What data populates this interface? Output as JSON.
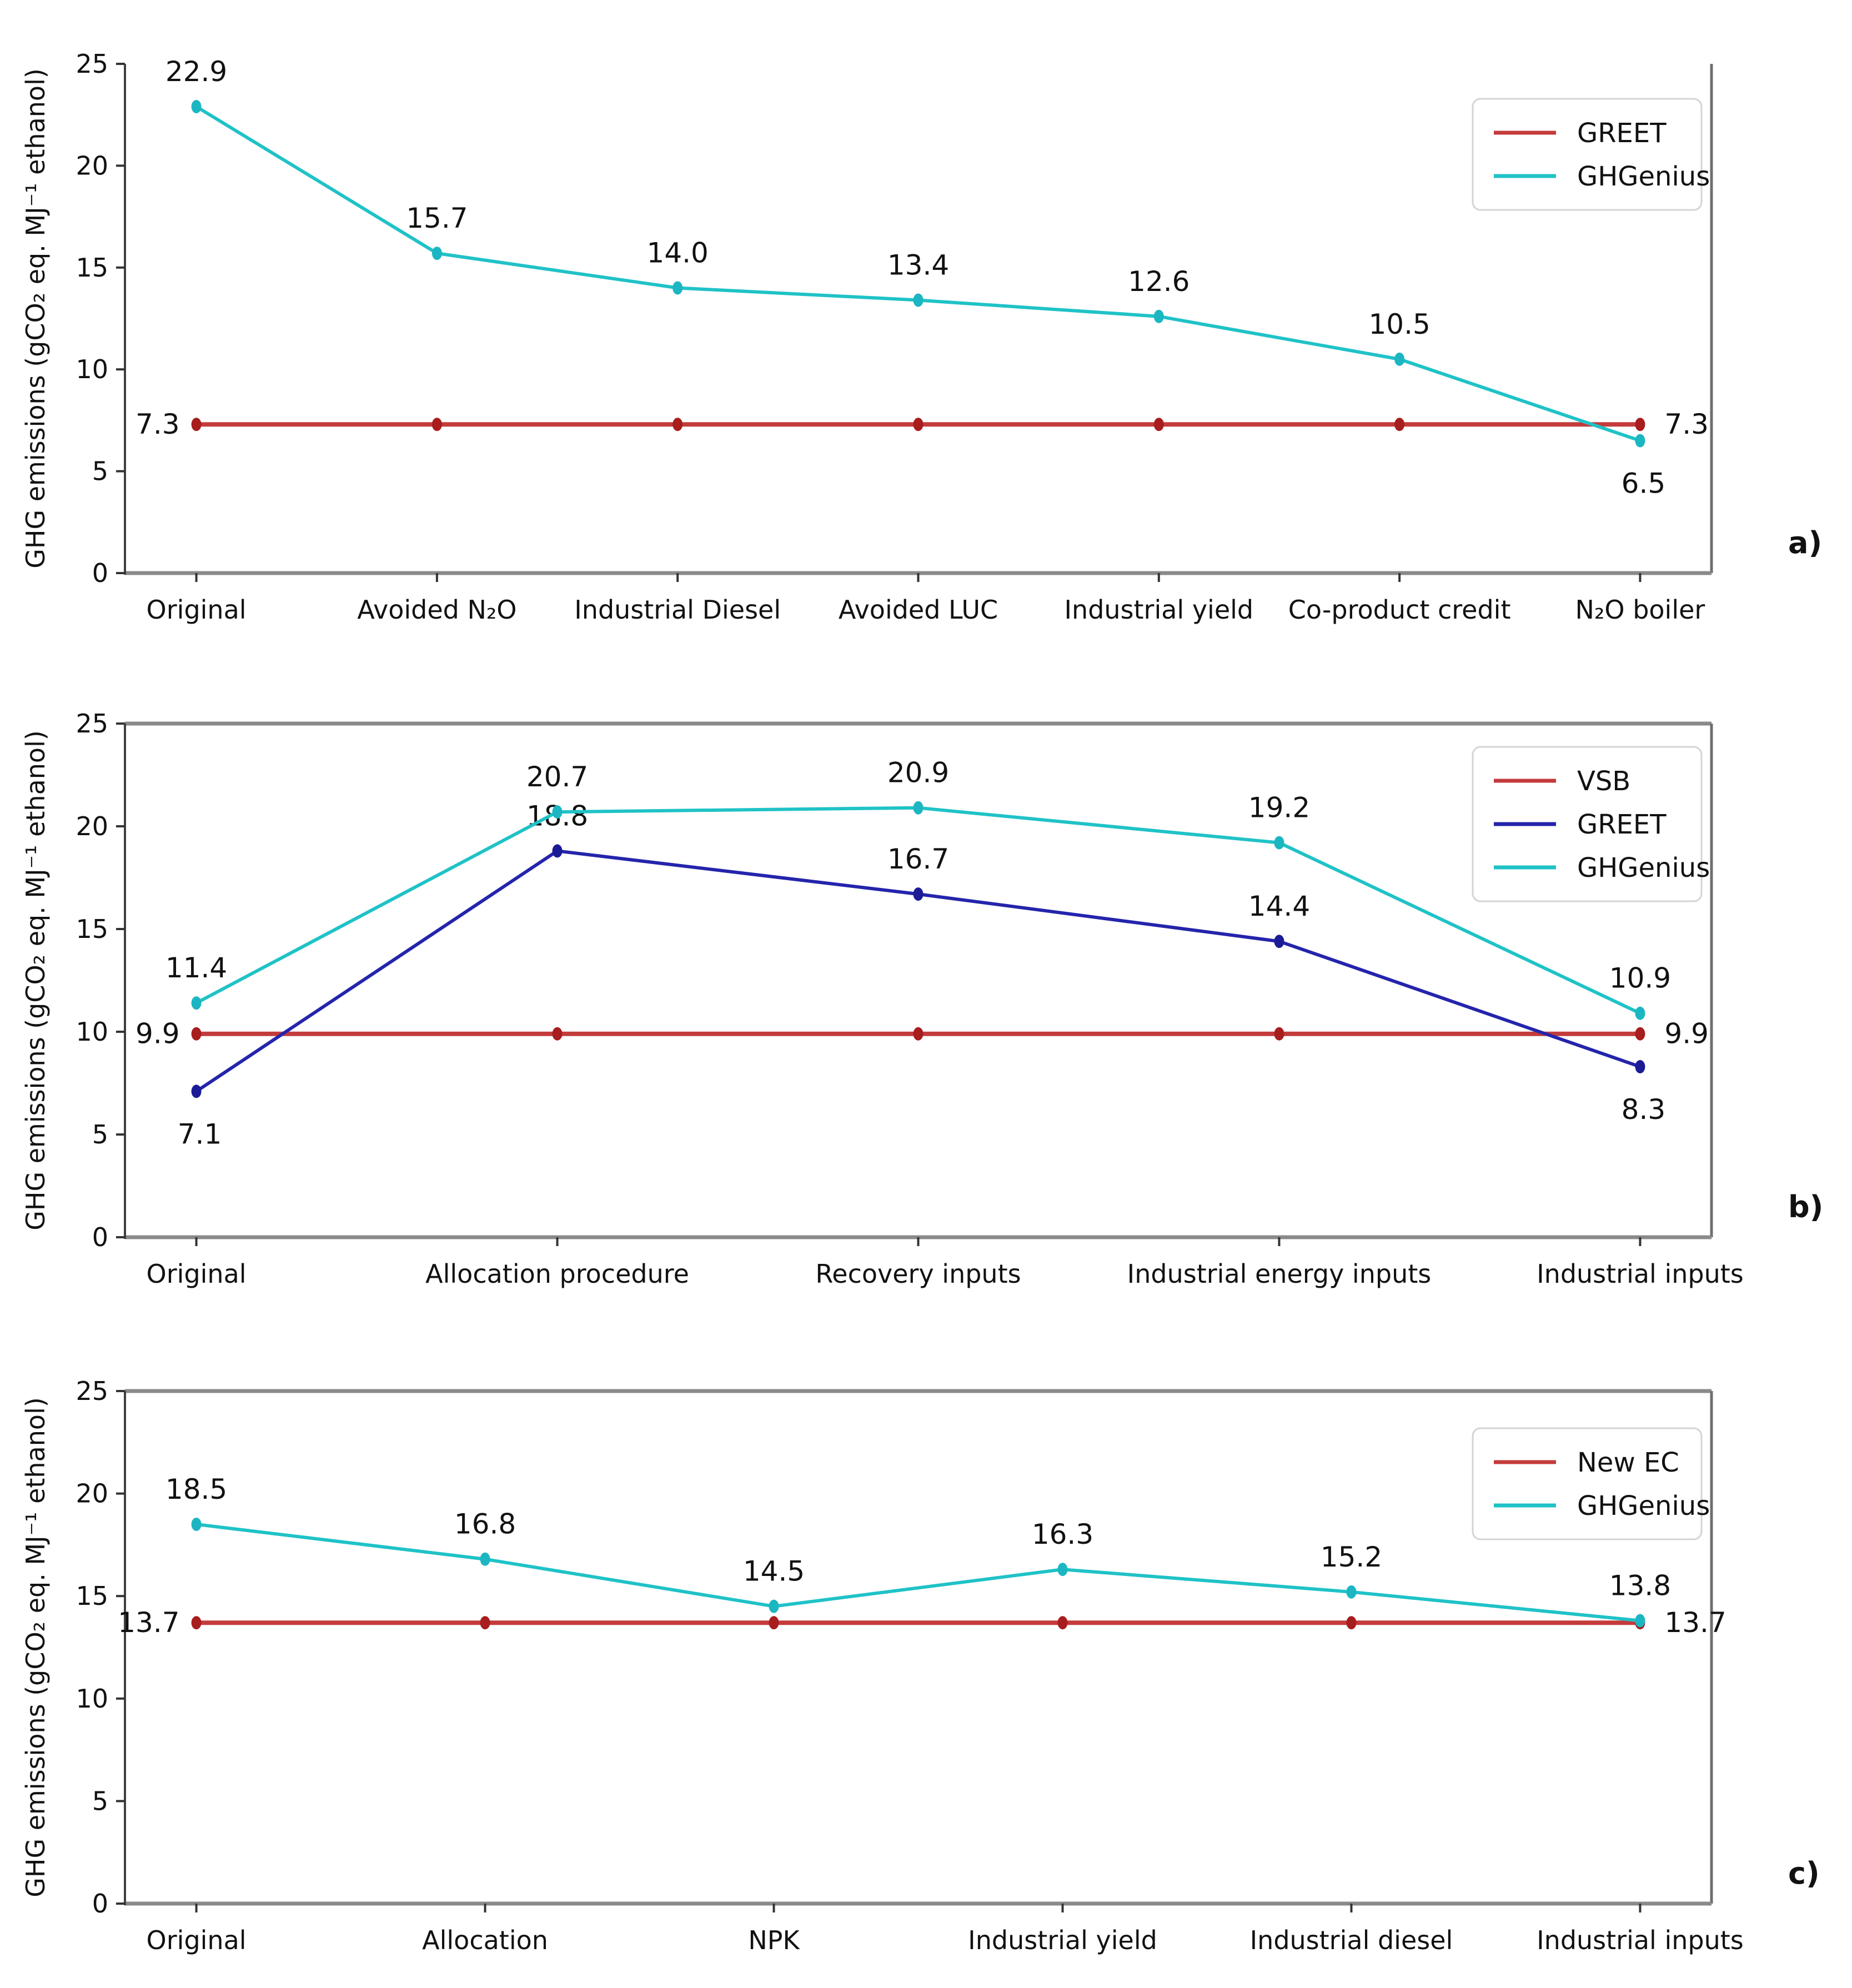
{
  "figure": {
    "background": "#ffffff",
    "ylabel": "GHG emissions (gCO₂ eq. MJ⁻¹ ethanol)",
    "accent_colors": {
      "red": "#c43b3b",
      "red_marker": "#a81d1d",
      "navy": "#2424ac",
      "cyan": "#1fc2c7"
    }
  },
  "chart_data": [
    {
      "type": "line",
      "panel_label": "a)",
      "ylabel": "GHG emissions (gCO₂ eq. MJ⁻¹ ethanol)",
      "ylim": [
        0,
        25
      ],
      "yticks": [
        0,
        5,
        10,
        15,
        20,
        25
      ],
      "grid": false,
      "legend_position": "upper right",
      "categories": [
        "Original",
        "Avoided N₂O",
        "Industrial Diesel",
        "Avoided LUC",
        "Industrial yield",
        "Co-product credit",
        "N₂O boiler"
      ],
      "series": [
        {
          "name": "GREET",
          "color": "#c43b3b",
          "marker_color": "#a81d1d",
          "line_width": 8,
          "values": [
            7.3,
            7.3,
            7.3,
            7.3,
            7.3,
            7.3,
            7.3
          ],
          "point_labels": [
            {
              "text": "7.3",
              "pos": "left"
            },
            null,
            null,
            null,
            null,
            null,
            {
              "text": "7.3",
              "pos": "right"
            }
          ]
        },
        {
          "name": "GHGenius",
          "color": "#1fc2c7",
          "marker_color": "#1cb6c2",
          "line_width": 6,
          "values": [
            22.9,
            15.7,
            14.0,
            13.4,
            12.6,
            10.5,
            6.5
          ],
          "point_labels": [
            {
              "text": "22.9",
              "pos": "above"
            },
            {
              "text": "15.7",
              "pos": "above"
            },
            {
              "text": "14.0",
              "pos": "above"
            },
            {
              "text": "13.4",
              "pos": "above"
            },
            {
              "text": "12.6",
              "pos": "above"
            },
            {
              "text": "10.5",
              "pos": "above"
            },
            {
              "text": "6.5",
              "pos": "below"
            }
          ]
        }
      ]
    },
    {
      "type": "line",
      "panel_label": "b)",
      "ylabel": "GHG emissions (gCO₂ eq. MJ⁻¹ ethanol)",
      "ylim": [
        0,
        25
      ],
      "yticks": [
        0,
        5,
        10,
        15,
        20,
        25
      ],
      "grid": false,
      "legend_position": "upper right",
      "categories": [
        "Original",
        "Allocation procedure",
        "Recovery inputs",
        "Industrial energy inputs",
        "Industrial inputs"
      ],
      "series": [
        {
          "name": "VSB",
          "color": "#c43b3b",
          "marker_color": "#a81d1d",
          "line_width": 8,
          "values": [
            9.9,
            9.9,
            9.9,
            9.9,
            9.9
          ],
          "point_labels": [
            {
              "text": "9.9",
              "pos": "left"
            },
            null,
            null,
            null,
            {
              "text": "9.9",
              "pos": "right"
            }
          ]
        },
        {
          "name": "GREET",
          "color": "#2424ac",
          "marker_color": "#1b1b96",
          "line_width": 6,
          "values": [
            7.1,
            18.8,
            16.7,
            14.4,
            8.3
          ],
          "point_labels": [
            {
              "text": "7.1",
              "pos": "below"
            },
            {
              "text": "18.8",
              "pos": "above"
            },
            {
              "text": "16.7",
              "pos": "above"
            },
            {
              "text": "14.4",
              "pos": "above"
            },
            {
              "text": "8.3",
              "pos": "below"
            }
          ]
        },
        {
          "name": "GHGenius",
          "color": "#1fc2c7",
          "marker_color": "#1cb6c2",
          "line_width": 6,
          "values": [
            11.4,
            20.7,
            20.9,
            19.2,
            10.9
          ],
          "point_labels": [
            {
              "text": "11.4",
              "pos": "above"
            },
            {
              "text": "20.7",
              "pos": "above"
            },
            {
              "text": "20.9",
              "pos": "above"
            },
            {
              "text": "19.2",
              "pos": "above"
            },
            {
              "text": "10.9",
              "pos": "above"
            }
          ]
        }
      ]
    },
    {
      "type": "line",
      "panel_label": "c)",
      "ylabel": "GHG emissions (gCO₂ eq. MJ⁻¹ ethanol)",
      "ylim": [
        0,
        25
      ],
      "yticks": [
        0,
        5,
        10,
        15,
        20,
        25
      ],
      "grid": false,
      "legend_position": "upper right",
      "categories": [
        "Original",
        "Allocation",
        "NPK",
        "Industrial yield",
        "Industrial diesel",
        "Industrial inputs"
      ],
      "series": [
        {
          "name": "New EC",
          "color": "#c43b3b",
          "marker_color": "#a81d1d",
          "line_width": 8,
          "values": [
            13.7,
            13.7,
            13.7,
            13.7,
            13.7,
            13.7
          ],
          "point_labels": [
            {
              "text": "13.7",
              "pos": "left"
            },
            null,
            null,
            null,
            null,
            {
              "text": "13.7",
              "pos": "right"
            }
          ]
        },
        {
          "name": "GHGenius",
          "color": "#1fc2c7",
          "marker_color": "#1cb6c2",
          "line_width": 6,
          "values": [
            18.5,
            16.8,
            14.5,
            16.3,
            15.2,
            13.8
          ],
          "point_labels": [
            {
              "text": "18.5",
              "pos": "above"
            },
            {
              "text": "16.8",
              "pos": "above"
            },
            {
              "text": "14.5",
              "pos": "above"
            },
            {
              "text": "16.3",
              "pos": "above"
            },
            {
              "text": "15.2",
              "pos": "above"
            },
            {
              "text": "13.8",
              "pos": "above"
            }
          ]
        }
      ]
    }
  ]
}
